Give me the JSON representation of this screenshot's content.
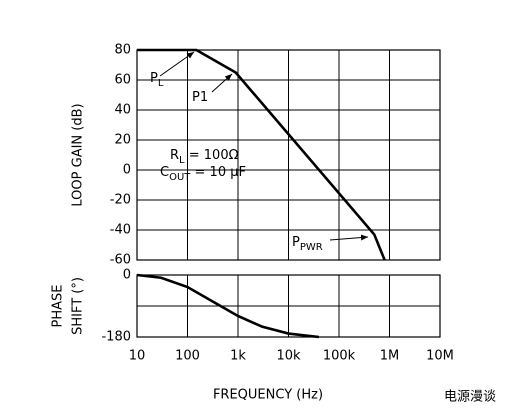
{
  "chart_data": [
    {
      "type": "line",
      "xlog": true,
      "grid": true,
      "color": "#000000",
      "ylabel": "LOOP GAIN (dB)",
      "xlim": [
        10,
        10000000
      ],
      "xticks": [
        10,
        100,
        1000,
        10000,
        100000,
        1000000,
        10000000
      ],
      "ylim": [
        -60,
        80
      ],
      "yticks": [
        80,
        60,
        40,
        20,
        0,
        -20,
        -40,
        -60
      ],
      "x": [
        10,
        150,
        900,
        500000,
        800000
      ],
      "values": [
        80,
        80,
        65,
        -43,
        -60
      ],
      "annotations": [
        {
          "text": "P",
          "sub": "L"
        },
        {
          "text": "P1"
        },
        {
          "text": "R",
          "sub": "L",
          "after": " = 100Ω"
        },
        {
          "text": "C",
          "sub": "OUT",
          "after": " = 10 µF"
        },
        {
          "text": "P",
          "sub": "PWR"
        }
      ]
    },
    {
      "type": "line",
      "xlog": true,
      "grid": true,
      "color": "#000000",
      "ylabel": [
        "PHASE",
        "SHIFT (°)"
      ],
      "xlabel": "FREQUENCY (Hz)",
      "xlim": [
        10,
        10000000
      ],
      "xticks": [
        10,
        100,
        {
          "value": 1000,
          "label": "1k"
        },
        {
          "value": 10000,
          "label": "10k"
        },
        {
          "value": 100000,
          "label": "100k"
        },
        {
          "value": 1000000,
          "label": "1M"
        },
        {
          "value": 10000000,
          "label": "10M"
        }
      ],
      "ylim": [
        -180,
        0
      ],
      "yticks": [
        0,
        -180
      ],
      "x": [
        10,
        30,
        100,
        300,
        1000,
        3000,
        10000,
        40000
      ],
      "values": [
        0,
        -8,
        -35,
        -75,
        -119,
        -150,
        -170,
        -180
      ]
    }
  ],
  "watermark": "电源漫谈"
}
